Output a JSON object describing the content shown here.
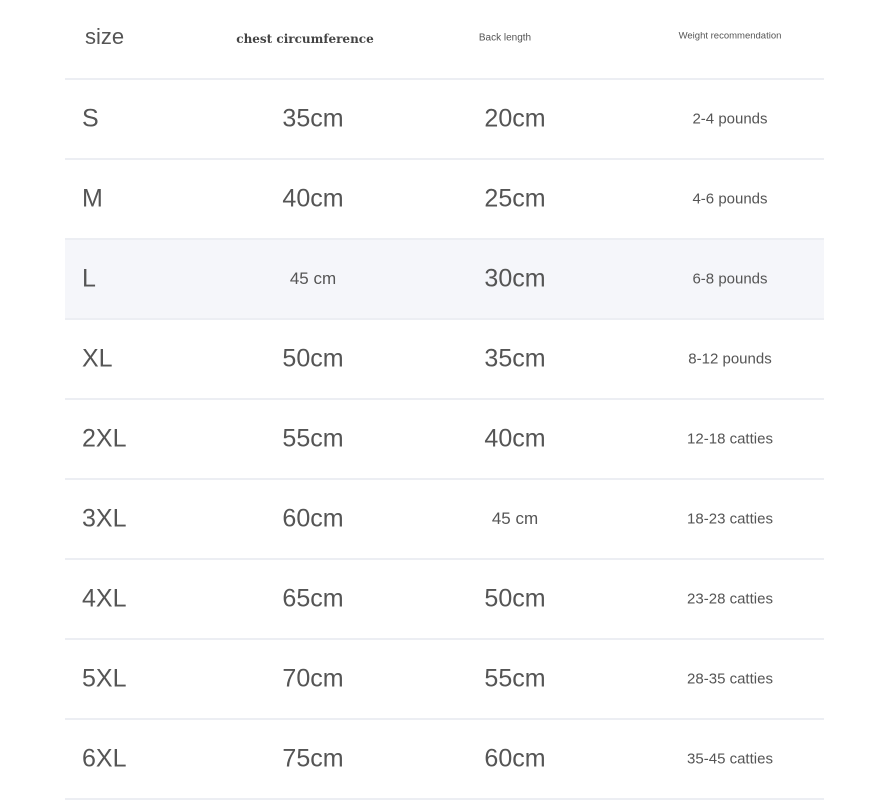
{
  "headers": [
    "size",
    "chest circumference",
    "Back length",
    "Weight recommendation"
  ],
  "rows": [
    [
      "S",
      "35cm",
      "20cm",
      "2-4 pounds"
    ],
    [
      "M",
      "40cm",
      "25cm",
      "4-6 pounds"
    ],
    [
      "L",
      "45 cm",
      "30cm",
      "6-8 pounds"
    ],
    [
      "XL",
      "50cm",
      "35cm",
      "8-12 pounds"
    ],
    [
      "2XL",
      "55cm",
      "40cm",
      "12-18 catties"
    ],
    [
      "3XL",
      "60cm",
      "45 cm",
      "18-23 catties"
    ],
    [
      "4XL",
      "65cm",
      "50cm",
      "23-28 catties"
    ],
    [
      "5XL",
      "70cm",
      "55cm",
      "28-35 catties"
    ],
    [
      "6XL",
      "75cm",
      "60cm",
      "35-45 catties"
    ]
  ],
  "highlighted_row": 2,
  "colors": {
    "text": "#555555",
    "highlight": "#f5f6fa",
    "divider": "#eceef3"
  }
}
